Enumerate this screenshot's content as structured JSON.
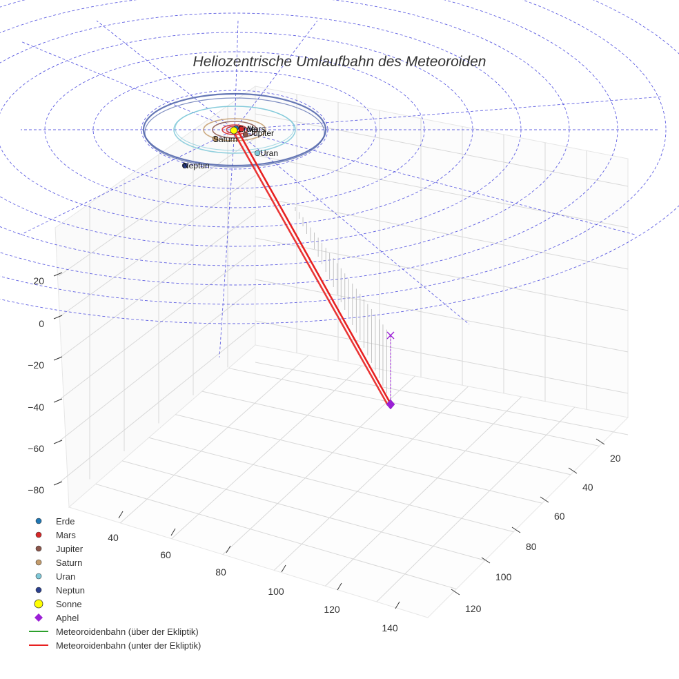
{
  "chart_data": {
    "type": "3d-scatter-line",
    "title": "Heliozentrische Umlaufbahn des Meteoroiden",
    "z_ticks": [
      "20",
      "0",
      "−20",
      "−40",
      "−60",
      "−80"
    ],
    "x_ticks": [
      "40",
      "60",
      "80",
      "100",
      "120",
      "140"
    ],
    "y_ticks": [
      "20",
      "40",
      "60",
      "80",
      "100",
      "120"
    ],
    "planets": [
      {
        "name": "Erde",
        "color": "#1f77b4",
        "label": "Erde"
      },
      {
        "name": "Mars",
        "color": "#d62728",
        "label": "Mars"
      },
      {
        "name": "Jupiter",
        "color": "#8c564b",
        "label": "Jupiter"
      },
      {
        "name": "Saturn",
        "color": "#c49c6c",
        "label": "Saturn"
      },
      {
        "name": "Uran",
        "color": "#7ec8d8",
        "label": "Uran"
      },
      {
        "name": "Neptun",
        "color": "#2a3f8f",
        "label": "Neptun"
      }
    ],
    "legend": [
      {
        "label": "Erde",
        "kind": "dot",
        "color": "#1f77b4"
      },
      {
        "label": "Mars",
        "kind": "dot",
        "color": "#d62728"
      },
      {
        "label": "Jupiter",
        "kind": "dot",
        "color": "#8c564b"
      },
      {
        "label": "Saturn",
        "kind": "dot",
        "color": "#c49c6c"
      },
      {
        "label": "Uran",
        "kind": "dot",
        "color": "#7ec8d8"
      },
      {
        "label": "Neptun",
        "kind": "dot",
        "color": "#2a3f8f"
      },
      {
        "label": "Sonne",
        "kind": "sun",
        "color": "#ffff00"
      },
      {
        "label": "Aphel",
        "kind": "diamond",
        "color": "#9b1fd6"
      },
      {
        "label": "Meteoroidenbahn (über der Ekliptik)",
        "kind": "line",
        "color": "#2ca02c"
      },
      {
        "label": "Meteoroidenbahn (unter der Ekliptik)",
        "kind": "line",
        "color": "#e82020"
      }
    ]
  }
}
